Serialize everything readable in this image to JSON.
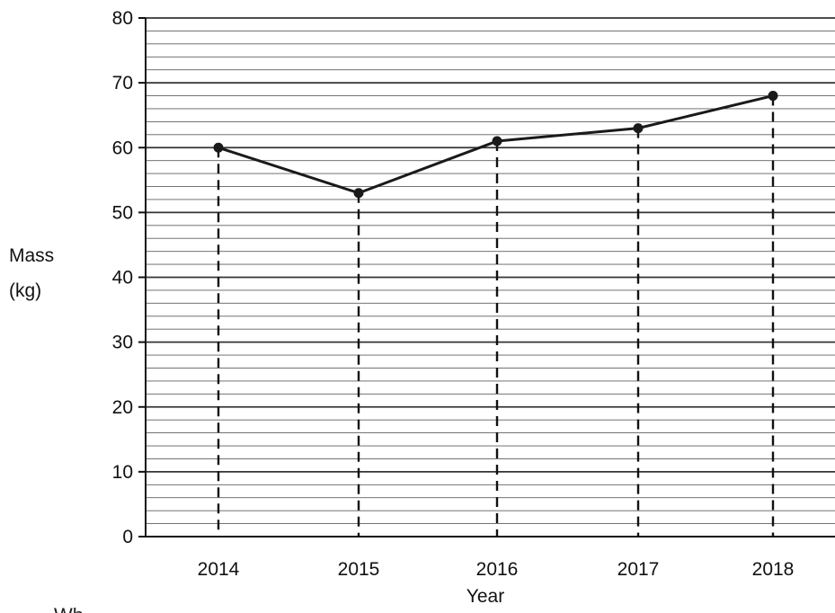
{
  "chart_data": {
    "type": "line",
    "title": "",
    "xlabel": "Year",
    "ylabel_lines": [
      "Mass",
      "(kg)"
    ],
    "categories": [
      "2014",
      "2015",
      "2016",
      "2017",
      "2018"
    ],
    "values": [
      60,
      53,
      61,
      63,
      68
    ],
    "ylim": [
      0,
      80
    ],
    "yticks": [
      0,
      10,
      20,
      30,
      40,
      50,
      60,
      70,
      80
    ],
    "minor_per_major": 4,
    "grid": true,
    "drop_lines": "dashed",
    "colors": {
      "line": "#1a1a1a",
      "grid": "#2a2a2a",
      "background": "#ffffff"
    }
  },
  "partial_text": "Wh"
}
